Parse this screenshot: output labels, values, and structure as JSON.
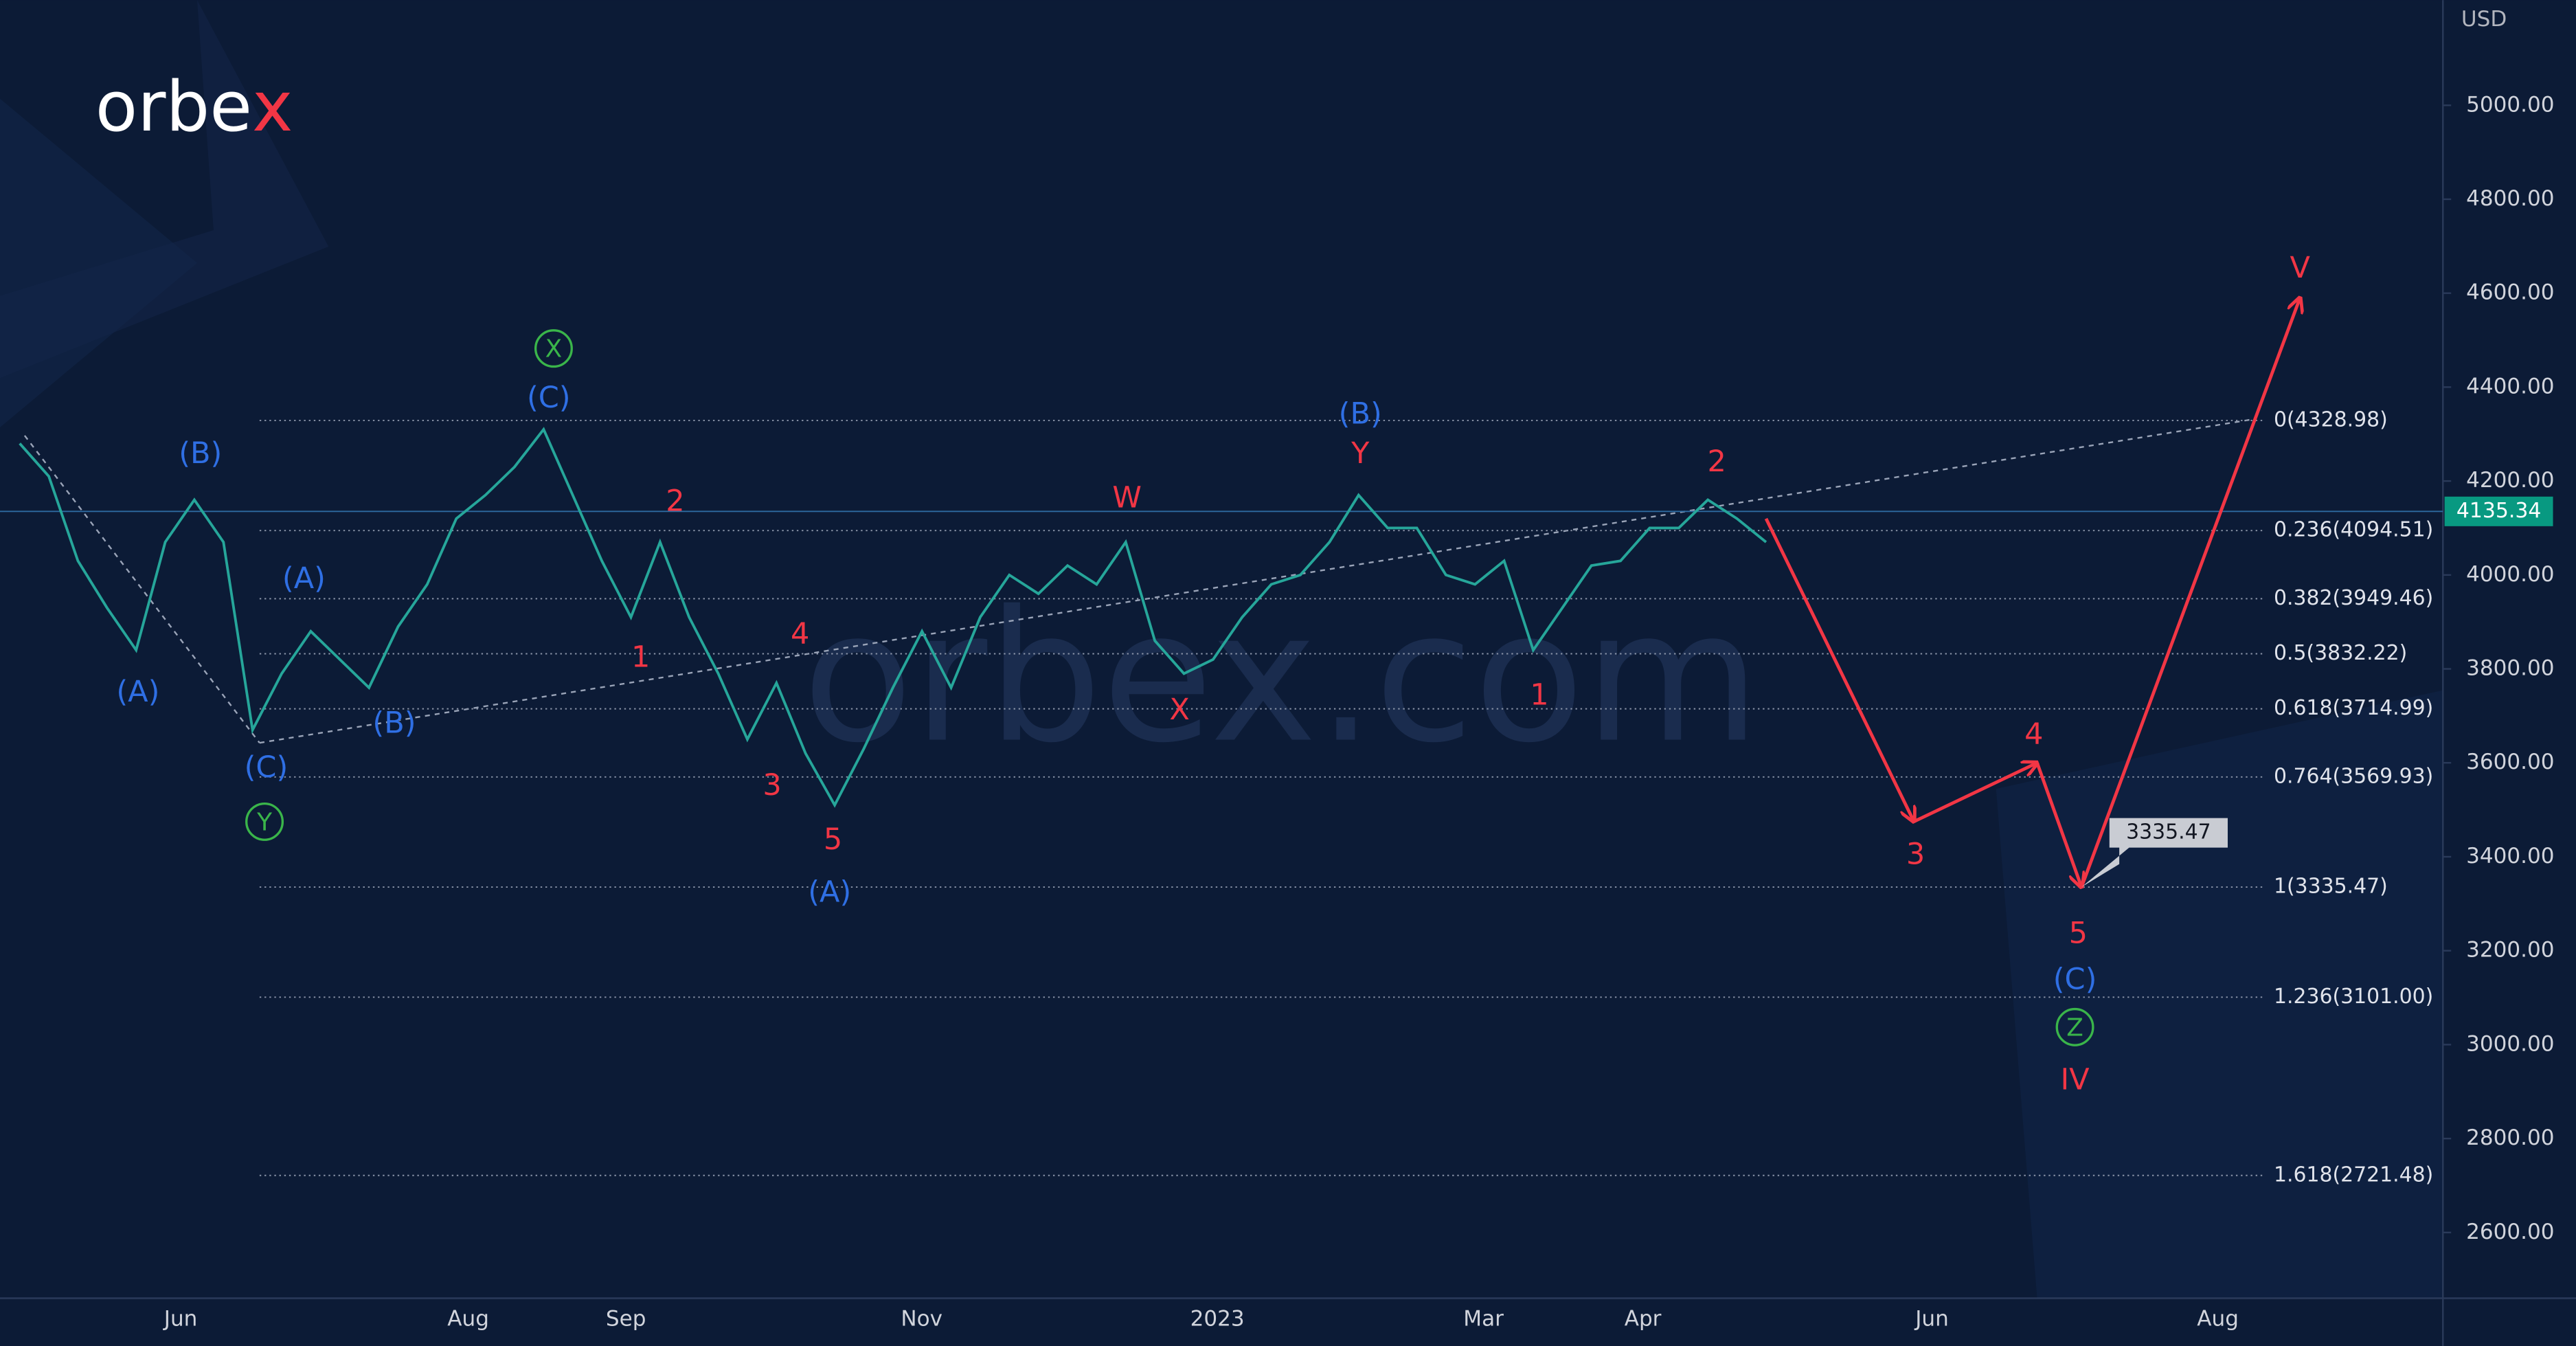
{
  "chart_data": {
    "type": "line",
    "logo": {
      "main": "orbe",
      "accent": "x"
    },
    "watermark": "orbex.com",
    "unit": "USD",
    "ylim": [
      2460,
      5224
    ],
    "yticks": [
      {
        "value": 5000,
        "label": "5000.00"
      },
      {
        "value": 4800,
        "label": "4800.00"
      },
      {
        "value": 4600,
        "label": "4600.00"
      },
      {
        "value": 4400,
        "label": "4400.00"
      },
      {
        "value": 4200,
        "label": "4200.00"
      },
      {
        "value": 4000,
        "label": "4000.00"
      },
      {
        "value": 3800,
        "label": "3800.00"
      },
      {
        "value": 3600,
        "label": "3600.00"
      },
      {
        "value": 3400,
        "label": "3400.00"
      },
      {
        "value": 3200,
        "label": "3200.00"
      },
      {
        "value": 3000,
        "label": "3000.00"
      },
      {
        "value": 2800,
        "label": "2800.00"
      },
      {
        "value": 2600,
        "label": "2600.00"
      }
    ],
    "categories": [
      "Jun",
      "Aug",
      "Sep",
      "Nov",
      "2023",
      "Mar",
      "Apr",
      "Jun",
      "Aug"
    ],
    "price": {
      "color": "#26a69a",
      "values": [
        4280,
        4210,
        4030,
        3930,
        3840,
        4070,
        4160,
        4070,
        3670,
        3790,
        3880,
        3820,
        3760,
        3890,
        3980,
        4120,
        4170,
        4230,
        4310,
        4170,
        4030,
        3910,
        4070,
        3910,
        3790,
        3650,
        3770,
        3620,
        3510,
        3630,
        3760,
        3880,
        3760,
        3910,
        4000,
        3960,
        4020,
        3980,
        4070,
        3860,
        3790,
        3820,
        3910,
        3980,
        4000,
        4070,
        4170,
        4100,
        4100,
        4000,
        3980,
        4030,
        3840,
        3930,
        4020,
        4030,
        4100,
        4100,
        4160,
        4120,
        4070
      ]
    },
    "current_price": {
      "value": 4135.34,
      "label": "4135.34",
      "color": "#089981"
    },
    "fib_levels": [
      {
        "value": 4328.98,
        "label": "0(4328.98)"
      },
      {
        "value": 4094.51,
        "label": "0.236(4094.51)"
      },
      {
        "value": 3949.46,
        "label": "0.382(3949.46)"
      },
      {
        "value": 3832.22,
        "label": "0.5(3832.22)"
      },
      {
        "value": 3714.99,
        "label": "0.618(3714.99)"
      },
      {
        "value": 3569.93,
        "label": "0.764(3569.93)"
      },
      {
        "value": 3335.47,
        "label": "1(3335.47)"
      },
      {
        "value": 3101.0,
        "label": "1.236(3101.00)"
      },
      {
        "value": 2721.48,
        "label": "1.618(2721.48)"
      }
    ],
    "projection": {
      "color": "#f23645",
      "values": [
        4120,
        3475,
        3600,
        3335.47,
        4590
      ],
      "target_label": "3335.47"
    },
    "label_colors": {
      "blue": "#2f6fe4",
      "red": "#f23645",
      "green": "#3ab54a"
    },
    "wave_labels": [
      {
        "text": "(B)",
        "tone": "blue"
      },
      {
        "text": "(A)",
        "tone": "blue"
      },
      {
        "text": "(C)",
        "tone": "blue"
      },
      {
        "text": "Y",
        "tone": "green"
      },
      {
        "text": "(A)",
        "tone": "blue"
      },
      {
        "text": "(B)",
        "tone": "blue"
      },
      {
        "text": "X",
        "tone": "green"
      },
      {
        "text": "(C)",
        "tone": "blue"
      },
      {
        "text": "2",
        "tone": "red"
      },
      {
        "text": "1",
        "tone": "red"
      },
      {
        "text": "4",
        "tone": "red"
      },
      {
        "text": "3",
        "tone": "red"
      },
      {
        "text": "5",
        "tone": "red"
      },
      {
        "text": "(A)",
        "tone": "blue"
      },
      {
        "text": "W",
        "tone": "red"
      },
      {
        "text": "X",
        "tone": "red"
      },
      {
        "text": "(B)",
        "tone": "blue"
      },
      {
        "text": "Y",
        "tone": "red"
      },
      {
        "text": "1",
        "tone": "red"
      },
      {
        "text": "2",
        "tone": "red"
      },
      {
        "text": "3",
        "tone": "red"
      },
      {
        "text": "4",
        "tone": "red"
      },
      {
        "text": "5",
        "tone": "red"
      },
      {
        "text": "(C)",
        "tone": "blue"
      },
      {
        "text": "Z",
        "tone": "green"
      },
      {
        "text": "IV",
        "tone": "red"
      },
      {
        "text": "V",
        "tone": "red"
      }
    ]
  }
}
